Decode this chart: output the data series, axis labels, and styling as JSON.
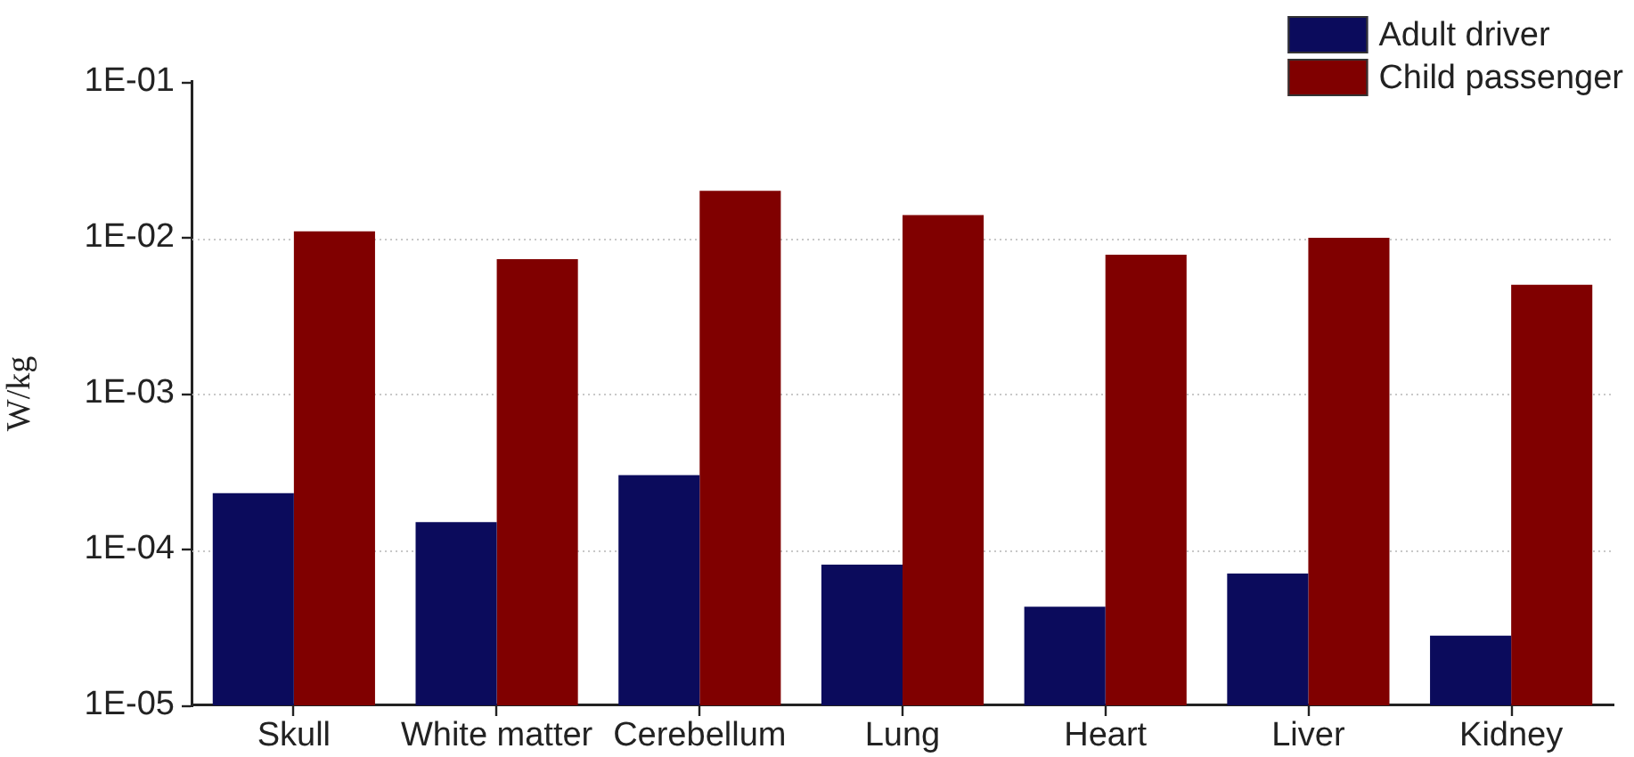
{
  "chart_data": {
    "type": "bar",
    "ylabel": "W/kg",
    "categories": [
      "Skull",
      "White matter",
      "Cerebellum",
      "Lung",
      "Heart",
      "Liver",
      "Kidney"
    ],
    "series": [
      {
        "name": "Adult driver",
        "color": "#0b0b5c",
        "values": [
          0.00023,
          0.00015,
          0.0003,
          8e-05,
          4.3e-05,
          7e-05,
          2.8e-05
        ]
      },
      {
        "name": "Child passenger",
        "color": "#800000",
        "values": [
          0.011,
          0.0073,
          0.02,
          0.014,
          0.0078,
          0.01,
          0.005
        ]
      }
    ],
    "log": "y",
    "ylim": [
      1e-05,
      0.1
    ],
    "yticks": [
      {
        "value": 1e-05,
        "label": "1E-05"
      },
      {
        "value": 0.0001,
        "label": "1E-04"
      },
      {
        "value": 0.001,
        "label": "1E-03"
      },
      {
        "value": 0.01,
        "label": "1E-02"
      },
      {
        "value": 0.1,
        "label": "1E-01"
      }
    ],
    "grid": "y",
    "legend": "top right"
  }
}
